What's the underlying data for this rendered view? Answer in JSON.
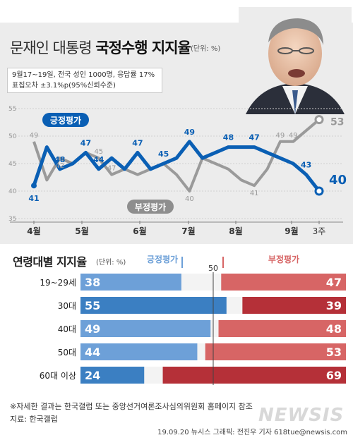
{
  "header": {
    "title_plain": "문재인 대통령 ",
    "title_bold": "국정수행 지지율",
    "unit": "(단위: %)",
    "survey_line1": "9월17~19일, 전국 성인 1000명, 응답률 17%",
    "survey_line2": "표집오차 ±3.1%p(95%신뢰수준)"
  },
  "colors": {
    "positive": "#0a5fb4",
    "negative": "#9a9a9a",
    "age_pos_light": "#6da0d8",
    "age_pos_dark": "#3b7fc2",
    "age_neg_light": "#d76565",
    "age_neg_dark": "#b53038",
    "panel_bg": "#ececec"
  },
  "chart_data": [
    {
      "type": "line",
      "title": "문재인 대통령 국정수행 지지율",
      "ylim": [
        35,
        55
      ],
      "yticks": [
        "55",
        "50",
        "45",
        "40",
        "35"
      ],
      "xticks": [
        "4월",
        "5월",
        "6월",
        "7월",
        "8월",
        "9월",
        "3주"
      ],
      "series": [
        {
          "name": "긍정평가",
          "values": [
            41,
            48,
            44,
            45,
            47,
            44,
            46,
            44,
            47,
            44,
            45,
            46,
            49,
            46,
            47,
            48,
            48,
            48,
            47,
            46,
            45,
            43,
            40
          ],
          "labels": [
            "41",
            "48",
            "47",
            "44",
            "47",
            "45",
            "49",
            "48",
            "47",
            "43",
            "40"
          ]
        },
        {
          "name": "부정평가",
          "values": [
            49,
            42,
            46,
            45,
            47,
            46,
            43,
            44,
            43,
            44,
            45,
            43,
            40,
            46,
            45,
            44,
            42,
            41,
            44,
            49,
            49,
            51,
            53
          ],
          "labels": [
            "49",
            "42",
            "45",
            "47",
            "40",
            "41",
            "49",
            "49",
            "53"
          ]
        }
      ]
    },
    {
      "type": "bar",
      "title": "연령대별 지지율",
      "unit": "(단위: %)",
      "midline": "50",
      "categories": [
        "19~29세",
        "30대",
        "40대",
        "50대",
        "60대 이상"
      ],
      "series": [
        {
          "name": "긍정평가",
          "values": [
            38,
            55,
            49,
            44,
            24
          ]
        },
        {
          "name": "부정평가",
          "values": [
            47,
            39,
            48,
            53,
            69
          ]
        }
      ]
    }
  ],
  "footer": {
    "note": "※자세한 결과는 한국갤럽 또는 중앙선거여론조사심의위원회 홈페이지 참조",
    "source": "지료: 한국갤럽",
    "credit": "19.09.20 뉴시스 그래픽: 전진우 기자 618tue@newsis.com",
    "logo": "NEWSIS"
  }
}
